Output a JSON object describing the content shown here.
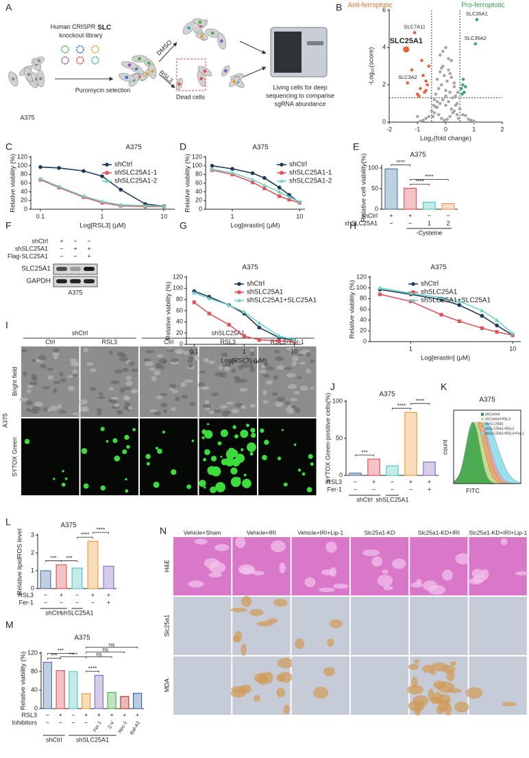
{
  "panel_labels": [
    "A",
    "B",
    "C",
    "D",
    "E",
    "F",
    "G",
    "H",
    "I",
    "J",
    "K",
    "L",
    "M",
    "N"
  ],
  "diagram_a": {
    "library_lines": [
      "Human CRISPR",
      "SLC",
      "knockout library"
    ],
    "selection": "Puromycin selection",
    "dmso": "DMSO",
    "rsl3": "RSL3",
    "dead": "Dead cells",
    "living_lines": [
      "Living cells for deep",
      "sequencing to comparise",
      "sgRNA abundance"
    ],
    "cell_line": "A375"
  },
  "blot_f": {
    "rows": [
      {
        "label": "shCtrl",
        "marks": [
          "+",
          "−",
          "−"
        ]
      },
      {
        "label": "shSLC25A1",
        "marks": [
          "−",
          "+",
          "+"
        ]
      },
      {
        "label": "Flag-SLC25A1",
        "marks": [
          "−",
          "−",
          "+"
        ]
      }
    ],
    "bands": [
      "SLC25A1",
      "GAPDH"
    ],
    "cell_line": "A375"
  },
  "images_i": {
    "groups": [
      "shCtrl",
      "shSLC25A1"
    ],
    "columns": [
      "Ctrl",
      "RSL3",
      "Ctrl",
      "RSL3",
      "RSL3+Fer-1"
    ],
    "rows": [
      "Bright field",
      "SYTOX Green"
    ],
    "cell_line": "A375"
  },
  "flow_k": {
    "title": "A375",
    "legend": [
      "shControl",
      "shControl+RSL3",
      "shSLC25A1",
      "shSLC25A1+RSL3",
      "shSLC25A1+RSL3+Fer-1"
    ],
    "x_label": "FITC",
    "y_label": "count"
  },
  "images_n": {
    "columns": [
      "Vehicle+Sham",
      "Vehicle+IRI",
      "Vehicle+IRI+Lip-1",
      "Slc25a1-KD",
      "Slc25a1-KD+IRI",
      "Slc25a1-KD+IRI+Lip-1"
    ],
    "rows": [
      "H&E",
      "Slc25a1",
      "MDA"
    ]
  },
  "chart_data": [
    {
      "type": "scatter",
      "x_label": "Log₂(fold change)",
      "y_label": "-Log₁₀(score)",
      "xlim": [
        -2,
        2
      ],
      "ylim": [
        0,
        6
      ],
      "xticks": [
        -2,
        -1,
        0,
        1,
        2
      ],
      "yticks": [
        0,
        2,
        4,
        6
      ],
      "vlines": [
        -0.5,
        0.5
      ],
      "hline": 1.3,
      "annotations": [
        "Anti-ferroptotic",
        "Pro-ferroptotic"
      ],
      "annotation_colors": [
        "#e8702a",
        "#2e9e4a"
      ],
      "series": [
        {
          "color": "#a6a6a6",
          "x": [
            -0.4,
            -0.3,
            -0.2,
            -0.1,
            0,
            0.1,
            0.2,
            0.3,
            0.4,
            -0.35,
            -0.25,
            -0.15,
            -0.05,
            0.05,
            0.15,
            0.25,
            0.35,
            -0.45,
            0.45,
            -0.3,
            -0.1,
            0.1,
            0.3,
            -0.2,
            0,
            0.2,
            -0.4,
            0.4,
            -0.15,
            0.15,
            -0.05,
            0.05,
            -0.25,
            0.25,
            -0.35,
            0.35,
            0,
            -0.5,
            0.5,
            -0.6,
            0.6,
            -0.7,
            0.7,
            -0.8,
            0.8,
            -0.9,
            0.9,
            -1,
            1,
            -0.2,
            0.2,
            0.1,
            -0.1,
            0,
            -0.3,
            0.3,
            0.15,
            -0.15,
            0.42,
            -0.42
          ],
          "values": [
            0.5,
            0.8,
            1,
            1.2,
            0.9,
            1.1,
            0.7,
            0.6,
            0.4,
            1.5,
            1.8,
            2,
            2.5,
            2.2,
            1.6,
            1.3,
            0.9,
            0.3,
            0.2,
            2.3,
            3,
            2.8,
            1.9,
            3.6,
            4,
            3.3,
            1.2,
            1,
            0.2,
            0.3,
            0.1,
            0.15,
            0.4,
            0.5,
            0.8,
            1.4,
            1.7,
            0.6,
            0.7,
            0.3,
            0.4,
            0.2,
            0.35,
            0.1,
            0.15,
            0.05,
            0.1,
            0.3,
            0.05,
            2.7,
            2.4,
            3.4,
            3.8,
            1.4,
            1.1,
            2.1,
            2.6,
            2.9,
            1.6,
            0.9
          ]
        },
        {
          "color": "#e8603c",
          "x": [
            -1.4,
            -1.1,
            -1.35,
            -1,
            -0.9,
            -0.8,
            -0.7,
            -0.95,
            -0.75,
            -0.6,
            -1.2,
            -0.85,
            -0.65,
            -0.7
          ],
          "values": [
            3.9,
            4.8,
            2.1,
            1.5,
            1.8,
            2.5,
            2.2,
            1.4,
            1.6,
            3,
            2.8,
            3.3,
            2,
            1.7
          ],
          "labels": [
            "SLC25A1",
            "SLC7A11",
            "SLC3A2",
            null,
            null,
            null,
            null,
            null,
            null,
            null,
            null,
            null,
            null,
            null
          ]
        },
        {
          "color": "#3aa57a",
          "x": [
            1.1,
            1.05,
            0.55,
            0.6,
            0.65,
            0.58,
            0.62,
            0.7
          ],
          "values": [
            5.5,
            4.2,
            1.8,
            2,
            1.6,
            1.5,
            2.3,
            1.9
          ],
          "labels": [
            "SLC35A1",
            "SLC35A2",
            null,
            null,
            null,
            null,
            null,
            null
          ]
        }
      ]
    },
    {
      "type": "line",
      "title": "A375",
      "x_label": "Log[RSL3] (μM)",
      "y_label": "Relative viability (%)",
      "log_x": true,
      "xlim": [
        0.07,
        15
      ],
      "ylim": [
        0,
        120
      ],
      "xticks": [
        0.1,
        1,
        10
      ],
      "yticks": [
        0,
        20,
        40,
        60,
        80,
        100,
        120
      ],
      "x": [
        0.1,
        0.2,
        0.5,
        1,
        2,
        5,
        10
      ],
      "series": [
        {
          "name": "shCtrl",
          "color": "#1c3a5a",
          "marker": "circle",
          "values": [
            97,
            95,
            88,
            76,
            45,
            12,
            7
          ]
        },
        {
          "name": "shSLC25A1-1",
          "color": "#e0525a",
          "marker": "square",
          "values": [
            68,
            50,
            28,
            15,
            8,
            6,
            6
          ]
        },
        {
          "name": "shSLC25A1-2",
          "color": "#6fd0c4",
          "marker": "triangle",
          "values": [
            70,
            52,
            30,
            18,
            10,
            8,
            7
          ]
        }
      ]
    },
    {
      "type": "line",
      "title": "A375",
      "x_label": "Log[erastin] (μM)",
      "y_label": "Relative viability (%)",
      "log_x": true,
      "xlim": [
        0.4,
        12
      ],
      "ylim": [
        0,
        120
      ],
      "xticks": [
        1,
        10
      ],
      "yticks": [
        0,
        20,
        40,
        60,
        80,
        100,
        120
      ],
      "x": [
        0.5,
        1,
        2,
        3,
        5,
        7,
        10
      ],
      "series": [
        {
          "name": "shCtrl",
          "color": "#1c3a5a",
          "marker": "circle",
          "values": [
            100,
            93,
            83,
            72,
            50,
            33,
            15
          ]
        },
        {
          "name": "shSLC25A1-1",
          "color": "#e0525a",
          "marker": "square",
          "values": [
            90,
            80,
            62,
            48,
            30,
            22,
            15
          ]
        },
        {
          "name": "shSLC25A1-2",
          "color": "#6fd0c4",
          "marker": "triangle",
          "values": [
            92,
            84,
            68,
            55,
            40,
            28,
            17
          ]
        }
      ]
    },
    {
      "type": "bar",
      "title": "A375",
      "y_label": "Relative cell viability(%)",
      "values": [
        98,
        51,
        17,
        14
      ],
      "colors": [
        "#4d77a8",
        "#e0525a",
        "#56c7c0",
        "#ee9a6a"
      ],
      "ylim": [
        0,
        105
      ],
      "yticks": [
        0,
        50,
        100
      ],
      "annotations": [
        "****",
        "****",
        "****"
      ],
      "conditions": [
        {
          "label": "shCtrl",
          "marks": [
            "+",
            "+",
            "−",
            "−"
          ]
        },
        {
          "label": "shSLC25A1",
          "marks": [
            "−",
            "−",
            "1",
            "2"
          ]
        }
      ],
      "note": "-Cysteine"
    },
    {
      "type": "line",
      "title": "A375",
      "x_label": "Log[RSL3] (μM)",
      "y_label": "Relative viability (%)",
      "log_x": true,
      "xlim": [
        0.07,
        14
      ],
      "ylim": [
        0,
        120
      ],
      "xticks": [
        0.1,
        1,
        10
      ],
      "yticks": [
        0,
        20,
        40,
        60,
        80,
        100,
        120
      ],
      "x": [
        0.1,
        0.2,
        0.5,
        1,
        2,
        5,
        10
      ],
      "series": [
        {
          "name": "shCtrl",
          "color": "#1c3a5a",
          "marker": "circle",
          "values": [
            95,
            85,
            70,
            55,
            30,
            12,
            7
          ]
        },
        {
          "name": "shSLC25A1",
          "color": "#e0525a",
          "marker": "square",
          "values": [
            75,
            55,
            35,
            15,
            8,
            6,
            5
          ]
        },
        {
          "name": "shSLC25A1+SLC25A1",
          "color": "#6fd0c4",
          "marker": "triangle",
          "values": [
            92,
            82,
            70,
            58,
            38,
            15,
            8
          ]
        }
      ]
    },
    {
      "type": "line",
      "title": "A375",
      "x_label": "Log[erastin] (μM)",
      "y_label": "Relative viability (%)",
      "log_x": true,
      "xlim": [
        0.4,
        12
      ],
      "ylim": [
        0,
        120
      ],
      "xticks": [
        1,
        10
      ],
      "yticks": [
        0,
        20,
        40,
        60,
        80,
        100,
        120
      ],
      "x": [
        0.5,
        1,
        2,
        3,
        5,
        7,
        10
      ],
      "series": [
        {
          "name": "shCtrl",
          "color": "#1c3a5a",
          "marker": "circle",
          "values": [
            97,
            88,
            78,
            68,
            48,
            30,
            12
          ]
        },
        {
          "name": "shSLC25A1",
          "color": "#e0525a",
          "marker": "square",
          "values": [
            88,
            75,
            50,
            38,
            25,
            18,
            12
          ]
        },
        {
          "name": "shSLC25A1+SLC25A1",
          "color": "#6fd0c4",
          "marker": "triangle",
          "values": [
            100,
            90,
            82,
            75,
            58,
            40,
            15
          ]
        }
      ]
    },
    {
      "type": "bar",
      "title": "A375",
      "y_label": "SYTOX Green-positive cells(%)",
      "values": [
        3,
        22,
        13,
        85,
        18
      ],
      "colors": [
        "#4d77a8",
        "#e0525a",
        "#56c7c0",
        "#ee9a3a",
        "#8a6fc0"
      ],
      "ylim": [
        0,
        100
      ],
      "yticks": [
        0,
        50,
        100
      ],
      "annotations": [
        "***",
        "****",
        "****"
      ],
      "conditions": [
        {
          "label": "RSL3",
          "marks": [
            "−",
            "+",
            "−",
            "+",
            "+"
          ]
        },
        {
          "label": "Fer-1",
          "marks": [
            "−",
            "−",
            "−",
            "−",
            "+"
          ]
        }
      ],
      "groups": [
        "shCtrl",
        "shSLC25A1"
      ]
    },
    {
      "type": "bar",
      "title": "A375",
      "y_label": "Relative lipidROS level",
      "values": [
        1,
        1.33,
        1.15,
        2.65,
        1.25
      ],
      "colors": [
        "#4d77a8",
        "#e0525a",
        "#56c7c0",
        "#ee9a3a",
        "#8a6fc0"
      ],
      "ylim": [
        0,
        3
      ],
      "yticks": [
        0,
        1,
        2,
        3
      ],
      "annotations": [
        "***",
        "***",
        "****",
        "****"
      ],
      "conditions": [
        {
          "label": "RSL3",
          "marks": [
            "−",
            "+",
            "−",
            "+",
            "+"
          ]
        },
        {
          "label": "Fer-1",
          "marks": [
            "−",
            "−",
            "−",
            "−",
            "+"
          ]
        }
      ],
      "groups": [
        "shCtrl",
        "shSLC25A1"
      ]
    },
    {
      "type": "bar",
      "title": "A375",
      "y_label": "Relative viability (%)",
      "values": [
        100,
        82,
        80,
        32,
        72,
        35,
        26,
        33
      ],
      "colors": [
        "#4d77a8",
        "#e0525a",
        "#56c7c0",
        "#ee9a3a",
        "#8a6fc0",
        "#4caf50",
        "#c0392b",
        "#3a6ea5"
      ],
      "ylim": [
        0,
        120
      ],
      "yticks": [
        0,
        40,
        80,
        120
      ],
      "annotations": [
        "***",
        "***",
        "****",
        "****",
        "ns",
        "ns",
        "ns"
      ],
      "conditions": [
        {
          "label": "RSL3",
          "marks": [
            "−",
            "+",
            "−",
            "+",
            "+",
            "+",
            "+",
            "+"
          ]
        },
        {
          "label": "Inhibitors",
          "marks": [
            "−",
            "−",
            "−",
            "−",
            "Fer-1",
            "Z-V",
            "Nec-1",
            "Baf-A1"
          ]
        }
      ],
      "groups": [
        "shCtrl",
        "shSLC25A1"
      ]
    }
  ]
}
